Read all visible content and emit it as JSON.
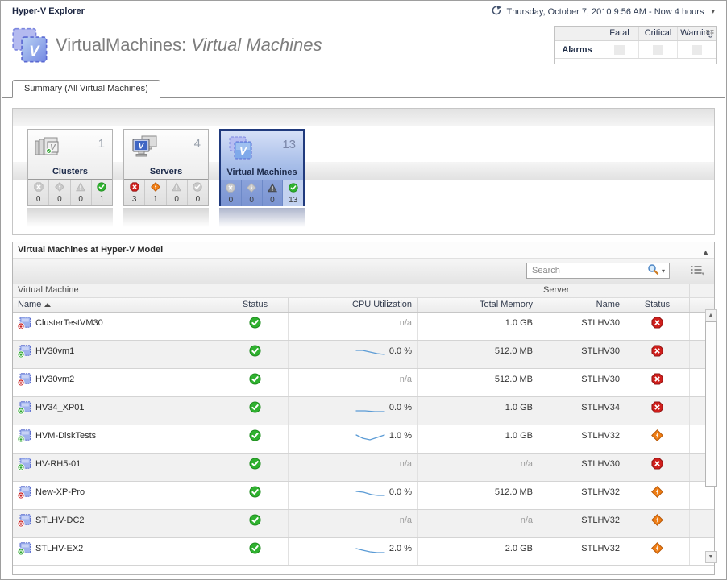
{
  "colors": {
    "status_normal": "#2fb12f",
    "status_fatal": "#cf1f1c",
    "status_critical": "#ee7d14",
    "selected_tile_border": "#203a7d",
    "sparkline": "#5b9bd5"
  },
  "icons": {
    "time_range": "clock-refresh-arrow",
    "search": "magnifier",
    "collapse": "triangle-up",
    "menu": "list-lines",
    "status_normal": "green-circle-check",
    "status_fatal": "red-octagon-x",
    "status_critical": "orange-diamond-bolt",
    "status_warning": "triangle-exclamation"
  },
  "header": {
    "app_title": "Hyper-V Explorer",
    "time_range": "Thursday, October 7, 2010 9:56 AM - Now 4 hours",
    "title_prefix": "VirtualMachines:",
    "title_italic": "Virtual Machines"
  },
  "alarms": {
    "row_label": "Alarms",
    "columns": [
      "Fatal",
      "Critical",
      "Warning"
    ],
    "values": [
      "",
      "",
      ""
    ]
  },
  "tab": {
    "label": "Summary (All Virtual Machines)"
  },
  "tiles": [
    {
      "id": "clusters",
      "label": "Clusters",
      "count": "1",
      "selected": false,
      "statuses": [
        {
          "type": "fatal",
          "count": "0",
          "active": false
        },
        {
          "type": "critical",
          "count": "0",
          "active": false
        },
        {
          "type": "warning",
          "count": "0",
          "active": false
        },
        {
          "type": "normal",
          "count": "1",
          "active": true
        }
      ]
    },
    {
      "id": "servers",
      "label": "Servers",
      "count": "4",
      "selected": false,
      "statuses": [
        {
          "type": "fatal",
          "count": "3",
          "active": true
        },
        {
          "type": "critical",
          "count": "1",
          "active": true
        },
        {
          "type": "warning",
          "count": "0",
          "active": false
        },
        {
          "type": "normal",
          "count": "0",
          "active": false
        }
      ]
    },
    {
      "id": "virtual-machines",
      "label": "Virtual Machines",
      "count": "13",
      "selected": true,
      "statuses": [
        {
          "type": "fatal",
          "count": "0",
          "active": false
        },
        {
          "type": "critical",
          "count": "0",
          "active": false
        },
        {
          "type": "warning",
          "count": "0",
          "active": false
        },
        {
          "type": "normal",
          "count": "13",
          "active": true
        }
      ]
    }
  ],
  "panel": {
    "title": "Virtual Machines at Hyper-V Model",
    "search_placeholder": "Search",
    "group_headers": [
      "Virtual Machine",
      "Server"
    ],
    "columns": [
      "Name",
      "Status",
      "CPU Utilization",
      "Total Memory",
      "Name",
      "Status"
    ]
  },
  "table": {
    "rows": [
      {
        "name": "ClusterTestVM30",
        "power": "off",
        "status": "normal",
        "cpu_value": "n/a",
        "spark": "",
        "memory": "1.0 GB",
        "server_name": "STLHV30",
        "server_status": "fatal"
      },
      {
        "name": "HV30vm1",
        "power": "on",
        "status": "normal",
        "cpu_value": "0.0 %",
        "spark": "1,4 9,4 18,6 27,8 36,9",
        "memory": "512.0 MB",
        "server_name": "STLHV30",
        "server_status": "fatal"
      },
      {
        "name": "HV30vm2",
        "power": "off",
        "status": "normal",
        "cpu_value": "n/a",
        "spark": "",
        "memory": "512.0 MB",
        "server_name": "STLHV30",
        "server_status": "fatal"
      },
      {
        "name": "HV34_XP01",
        "power": "on",
        "status": "normal",
        "cpu_value": "0.0 %",
        "spark": "1,9 12,9 24,10 36,10",
        "memory": "1.0 GB",
        "server_name": "STLHV34",
        "server_status": "fatal"
      },
      {
        "name": "HVM-DiskTests",
        "power": "on",
        "status": "normal",
        "cpu_value": "1.0 %",
        "spark": "1,4 9,8 18,10 27,7 36,4",
        "memory": "1.0 GB",
        "server_name": "STLHV32",
        "server_status": "critical"
      },
      {
        "name": "HV-RH5-01",
        "power": "on",
        "status": "normal",
        "cpu_value": "n/a",
        "spark": "",
        "memory": "n/a",
        "server_name": "STLHV30",
        "server_status": "fatal"
      },
      {
        "name": "New-XP-Pro",
        "power": "off",
        "status": "normal",
        "cpu_value": "0.0 %",
        "spark": "1,4 10,5 20,8 28,9 36,9",
        "memory": "512.0 MB",
        "server_name": "STLHV32",
        "server_status": "critical"
      },
      {
        "name": "STLHV-DC2",
        "power": "off",
        "status": "normal",
        "cpu_value": "n/a",
        "spark": "",
        "memory": "n/a",
        "server_name": "STLHV32",
        "server_status": "critical"
      },
      {
        "name": "STLHV-EX2",
        "power": "on",
        "status": "normal",
        "cpu_value": "2.0 %",
        "spark": "1,5 9,7 18,9 27,10 36,10",
        "memory": "2.0 GB",
        "server_name": "STLHV32",
        "server_status": "critical"
      }
    ]
  }
}
